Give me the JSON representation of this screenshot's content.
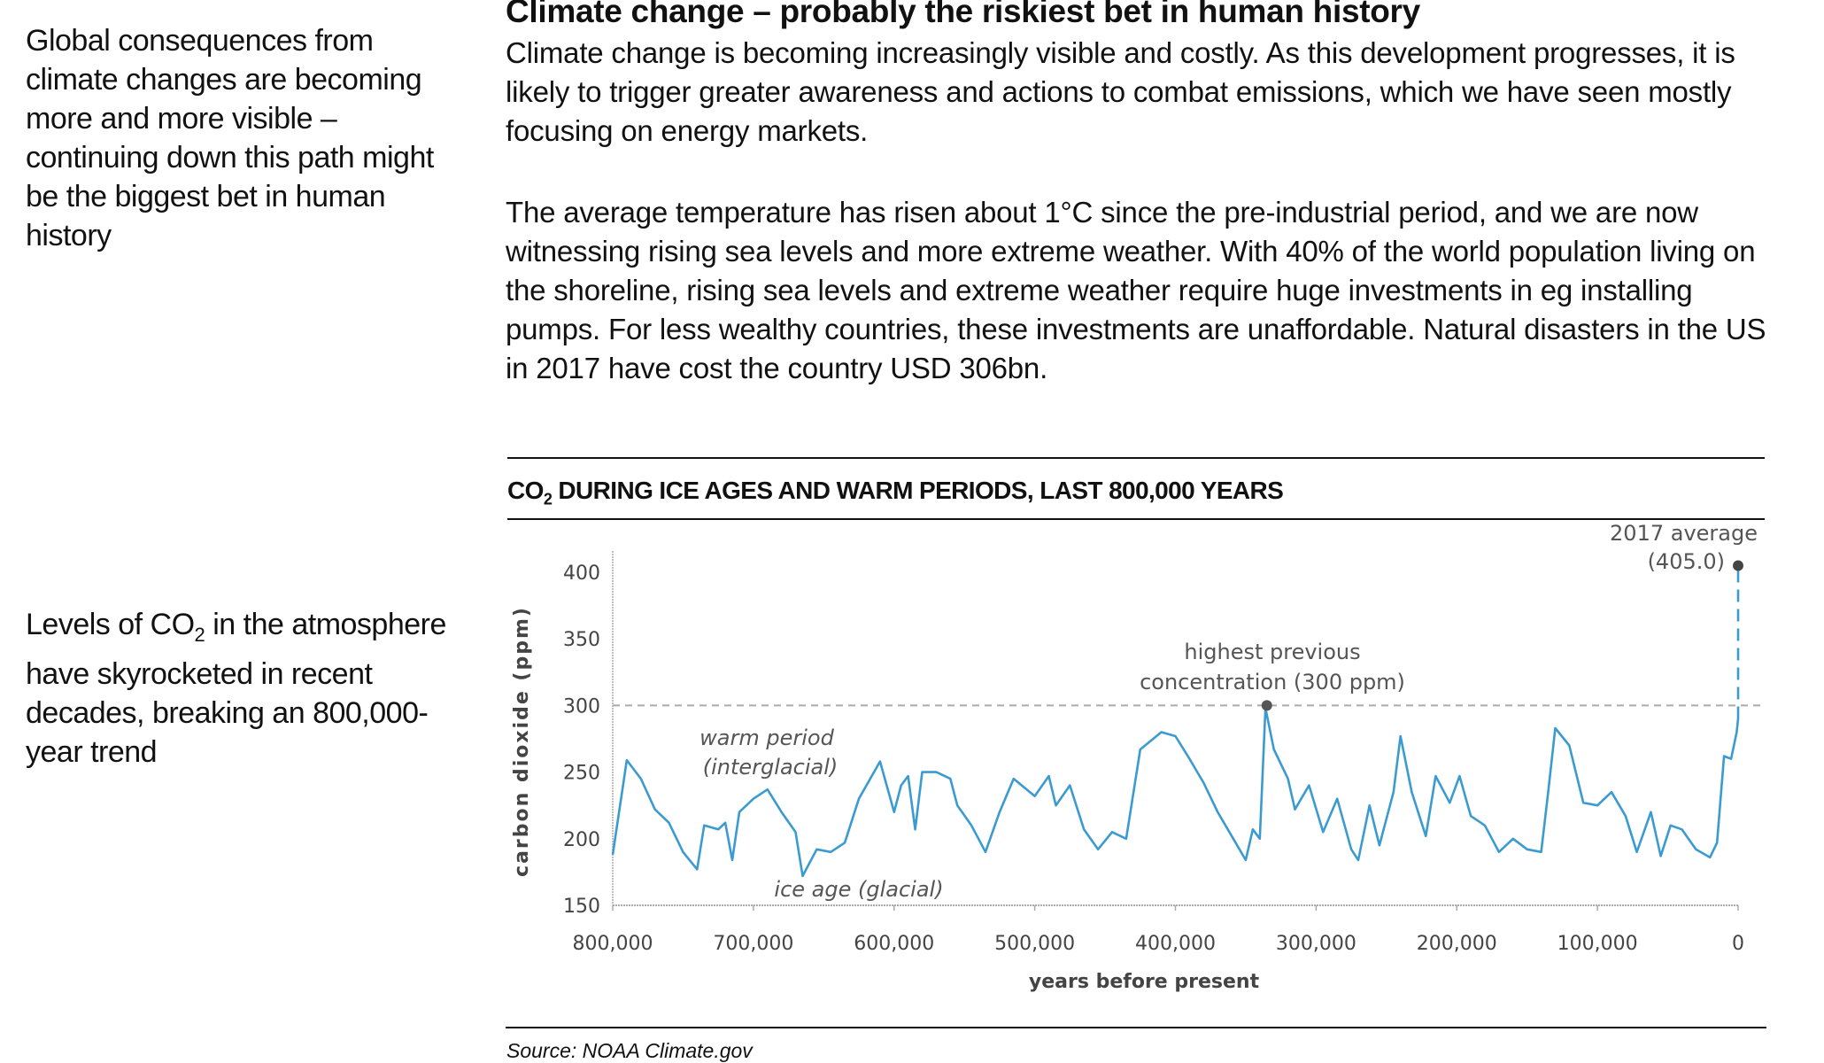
{
  "sidebar": {
    "note1": "Global consequences from climate changes are becoming more and more visible – continuing down this path might be the biggest bet in human history",
    "note2_pre": "Levels of CO",
    "note2_sub": "2",
    "note2_post": " in the atmosphere have skyrocketed in recent decades, breaking an 800,000-year trend"
  },
  "article": {
    "headline": "Climate change – probably the riskiest bet in human history",
    "para1": "Climate change is becoming increasingly visible and costly. As this development progresses, it is likely to trigger greater awareness and actions to combat emissions, which we have seen mostly focusing on energy markets.",
    "para2": "The average temperature has risen about 1°C since the pre-industrial period, and we are now witnessing rising sea levels and more extreme weather. With 40% of the world population living on the shoreline, rising sea levels and extreme weather require huge investments in eg installing pumps. For less wealthy countries, these investments are unaffordable. Natural disasters in the US in 2017 have cost the country USD 306bn."
  },
  "chart_title": {
    "pre": "CO",
    "sub": "2",
    "post": " DURING ICE AGES AND WARM PERIODS, LAST 800,000 YEARS"
  },
  "source": "Source: NOAA Climate.gov",
  "chart_data": {
    "type": "line",
    "xlabel": "years before present",
    "ylabel": "carbon dioxide (ppm)",
    "xlim": [
      800000,
      0
    ],
    "ylim": [
      150,
      400
    ],
    "xticks": [
      "800,000",
      "700,000",
      "600,000",
      "500,000",
      "400,000",
      "300,000",
      "200,000",
      "100,000",
      "0"
    ],
    "xtick_values": [
      800000,
      700000,
      600000,
      500000,
      400000,
      300000,
      200000,
      100000,
      0
    ],
    "yticks": [
      "150",
      "200",
      "250",
      "300",
      "350",
      "400"
    ],
    "ytick_values": [
      150,
      200,
      250,
      300,
      350,
      400
    ],
    "grid": false,
    "line_color": "#3b9bd1",
    "series": [
      {
        "x": [
          800000,
          790000,
          780000,
          770000,
          760000,
          750000,
          740000,
          735000,
          725000,
          720000,
          715000,
          710000,
          700000,
          690000,
          680000,
          670000,
          665000,
          655000,
          645000,
          635000,
          625000,
          610000,
          600000,
          595000,
          590000,
          585000,
          580000,
          570000,
          560000,
          555000,
          545000,
          535000,
          525000,
          515000,
          500000,
          490000,
          485000,
          475000,
          465000,
          455000,
          445000,
          435000,
          425000,
          410000,
          400000,
          390000,
          380000,
          370000,
          360000,
          350000,
          345000,
          340000,
          336000,
          330000,
          320000,
          315000,
          305000,
          295000,
          285000,
          275000,
          270000,
          262000,
          255000,
          245000,
          240000,
          232000,
          222000,
          215000,
          205000,
          198000,
          190000,
          180000,
          170000,
          160000,
          150000,
          140000,
          135000,
          130000,
          120000,
          110000,
          100000,
          90000,
          80000,
          72000,
          62000,
          55000,
          48000,
          40000,
          30000,
          20000,
          15000,
          10000,
          5000,
          1000,
          0
        ],
        "y": [
          188,
          259,
          245,
          222,
          212,
          190,
          177,
          210,
          207,
          212,
          184,
          220,
          230,
          237,
          220,
          205,
          172,
          192,
          190,
          197,
          230,
          258,
          220,
          240,
          247,
          207,
          250,
          250,
          245,
          225,
          210,
          190,
          220,
          245,
          232,
          247,
          225,
          240,
          207,
          192,
          205,
          200,
          267,
          280,
          277,
          260,
          242,
          220,
          202,
          184,
          207,
          200,
          298,
          267,
          245,
          222,
          240,
          205,
          230,
          192,
          184,
          225,
          195,
          235,
          277,
          235,
          202,
          247,
          227,
          247,
          217,
          210,
          190,
          200,
          192,
          190,
          235,
          283,
          270,
          227,
          225,
          235,
          217,
          190,
          220,
          187,
          210,
          207,
          192,
          186,
          197,
          262,
          260,
          280,
          290
        ]
      }
    ],
    "threshold": {
      "value": 300,
      "label_line1": "highest previous",
      "label_line2": "concentration (300 ppm)",
      "x": 335000
    },
    "current": {
      "value": 405.0,
      "label_line1": "2017 average",
      "label_line2": "(405.0)"
    },
    "annotations": [
      {
        "text": "warm period",
        "color": "#d0393b"
      },
      {
        "text": "(interglacial)",
        "color": "#d0393b"
      },
      {
        "text": "ice age (glacial)",
        "color": "#1f3f7a"
      }
    ]
  }
}
